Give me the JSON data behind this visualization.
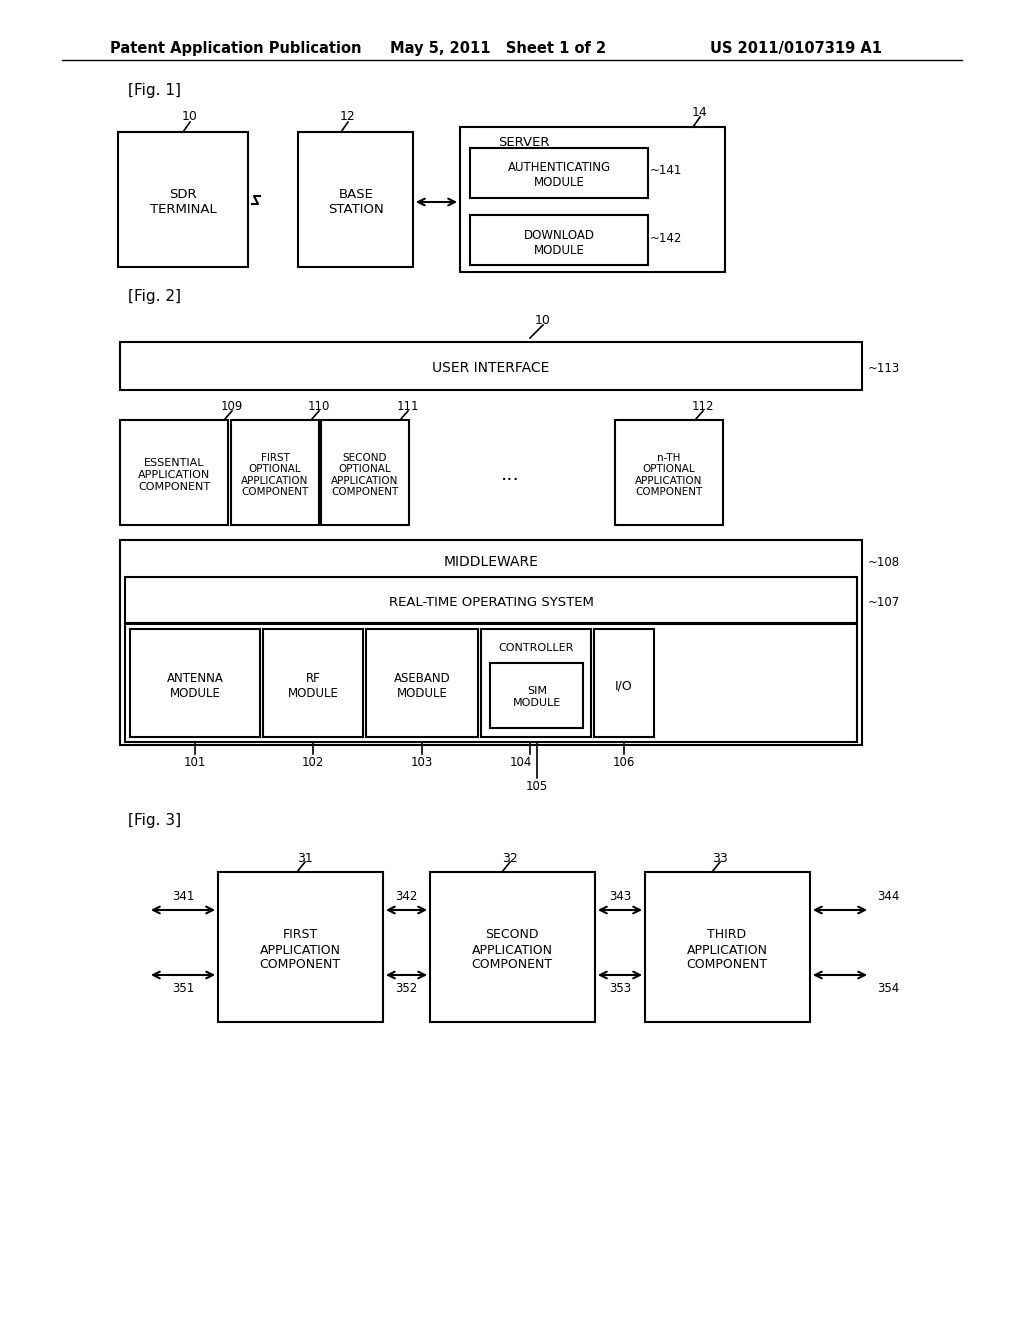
{
  "bg_color": "#ffffff",
  "header_text": "Patent Application Publication",
  "header_date": "May 5, 2011   Sheet 1 of 2",
  "header_patent": "US 2011/0107319 A1",
  "fig1_label": "[Fig. 1]",
  "fig2_label": "[Fig. 2]",
  "fig3_label": "[Fig. 3]"
}
